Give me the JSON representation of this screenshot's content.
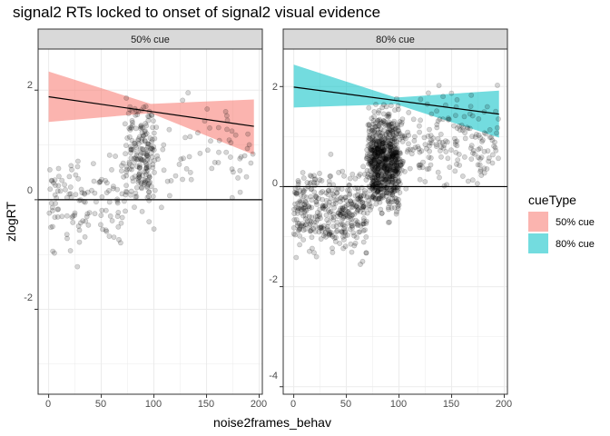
{
  "chart_data": {
    "type": "scatter",
    "title": "signal2 RTs locked to onset of signal2 visual evidence",
    "xlabel": "noise2frames_behav",
    "ylabel": "zlogRT",
    "xlim": [
      -10,
      203
    ],
    "x_ticks": [
      "0",
      "50",
      "100",
      "150",
      "200"
    ],
    "grid": true,
    "hline": 0,
    "legend": {
      "title": "cueType",
      "placement": "right",
      "entries": [
        {
          "label": "50% cue",
          "color": "#F8766D"
        },
        {
          "label": "80% cue",
          "color": "#00BFC4"
        }
      ]
    },
    "panels": [
      {
        "strip": "50% cue",
        "ylim": [
          -3.55,
          2.75
        ],
        "y_ticks": [
          "-2",
          "0",
          "2"
        ],
        "fill_color": "#F8766D",
        "fit": {
          "x": [
            0,
            195
          ],
          "y": [
            1.88,
            1.34
          ]
        },
        "ribbon": {
          "x": [
            0,
            97,
            195
          ],
          "lower": [
            1.42,
            1.58,
            0.82
          ],
          "upper": [
            2.34,
            1.75,
            1.83
          ]
        },
        "point_count": 380
      },
      {
        "strip": "80% cue",
        "ylim": [
          -4.15,
          2.75
        ],
        "y_ticks": [
          "-4",
          "-2",
          "0",
          "2"
        ],
        "fill_color": "#00BFC4",
        "fit": {
          "x": [
            0,
            195
          ],
          "y": [
            1.99,
            1.45
          ]
        },
        "ribbon": {
          "x": [
            0,
            97,
            195
          ],
          "lower": [
            1.58,
            1.65,
            0.98
          ],
          "upper": [
            2.44,
            1.78,
            1.92
          ]
        },
        "point_count": 1300
      }
    ]
  }
}
